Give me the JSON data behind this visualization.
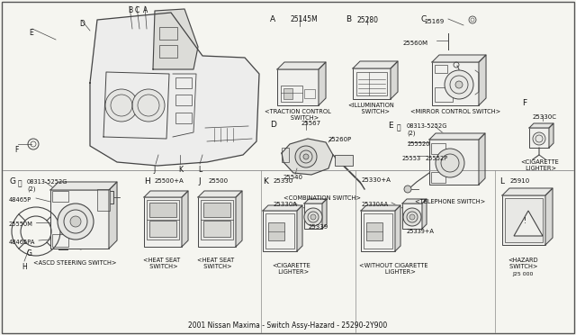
{
  "title": "2001 Nissan Maxima - Switch Assy-Hazard - 25290-2Y900",
  "bg_color": "#f5f5f0",
  "line_color": "#444444",
  "text_color": "#111111",
  "border_color": "#888888",
  "sections": {
    "A": {
      "label": "A",
      "part": "25145M",
      "desc": "<TRACTION CONTROL\n    SWITCH>"
    },
    "B": {
      "label": "B",
      "part": "25280",
      "desc": "<ILLUMINATION\n   SWITCH>"
    },
    "C": {
      "label": "C",
      "parts": [
        "25169",
        "25560M"
      ],
      "desc": "<MIRROR CONTROL SWITCH>"
    },
    "D": {
      "label": "D",
      "parts": [
        "25567",
        "25260P",
        "25540"
      ],
      "desc": "<COMBINATION SWITCH>"
    },
    "E": {
      "label": "E",
      "parts": [
        "08313-5252G",
        "(2)",
        "255520",
        "25553",
        "25552P"
      ],
      "desc": "<TELEPHONE SWITCH>"
    },
    "F": {
      "label": "F",
      "parts": [
        "25330C"
      ],
      "desc": "<CIGARETTE\n LIGHTER>"
    },
    "G": {
      "label": "G",
      "parts": [
        "08313-5252G",
        "(2)",
        "48465P",
        "25550M",
        "48465PA"
      ],
      "desc": "<ASCD STEERING SWITCH>"
    },
    "H": {
      "label": "H",
      "parts": [
        "25500+A"
      ],
      "desc": "<HEAT SEAT\n  SWITCH>"
    },
    "J": {
      "label": "J",
      "parts": [
        "25500"
      ],
      "desc": "<HEAT SEAT\n  SWITCH>"
    },
    "K": {
      "label": "K",
      "parts": [
        "25330",
        "25330A",
        "25339"
      ],
      "desc": "<CIGARETTE\n  LIGHTER>"
    },
    "NL": {
      "parts": [
        "25330+A",
        "25330AA",
        "25339+A"
      ],
      "desc": "<WITHOUT CIGARETTE\n      LIGHTER>"
    },
    "L": {
      "label": "L",
      "parts": [
        "25910"
      ],
      "desc": "<HAZARD\n SWITCH>",
      "pn": "J25 000"
    }
  }
}
